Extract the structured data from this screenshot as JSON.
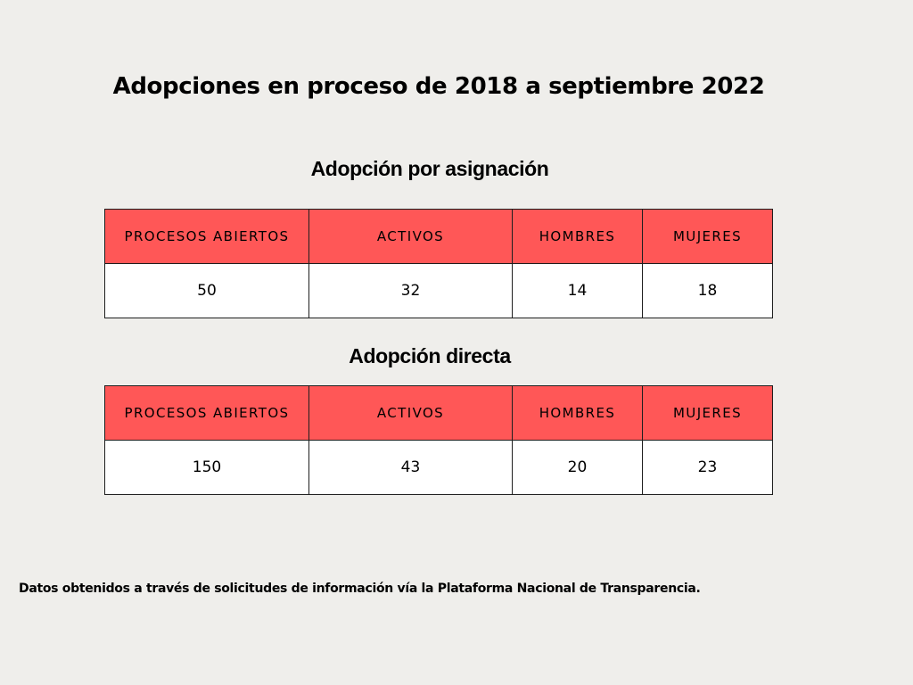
{
  "title": "Adopciones en proceso de 2018 a septiembre 2022",
  "sections": [
    {
      "title": "Adopción por asignación",
      "headers": [
        "PROCESOS ABIERTOS",
        "ACTIVOS",
        "HOMBRES",
        "MUJERES"
      ],
      "values": [
        "50",
        "32",
        "14",
        "18"
      ]
    },
    {
      "title": "Adopción directa",
      "headers": [
        "PROCESOS ABIERTOS",
        "ACTIVOS",
        "HOMBRES",
        "MUJERES"
      ],
      "values": [
        "150",
        "43",
        "20",
        "23"
      ]
    }
  ],
  "footnote": "Datos obtenidos a través de solicitudes de información vía la Plataforma Nacional de Transparencia.",
  "colors": {
    "background": "#efeeeb",
    "header_fill": "#ff5757",
    "cell_fill": "#ffffff",
    "border": "#1e1e1e"
  }
}
